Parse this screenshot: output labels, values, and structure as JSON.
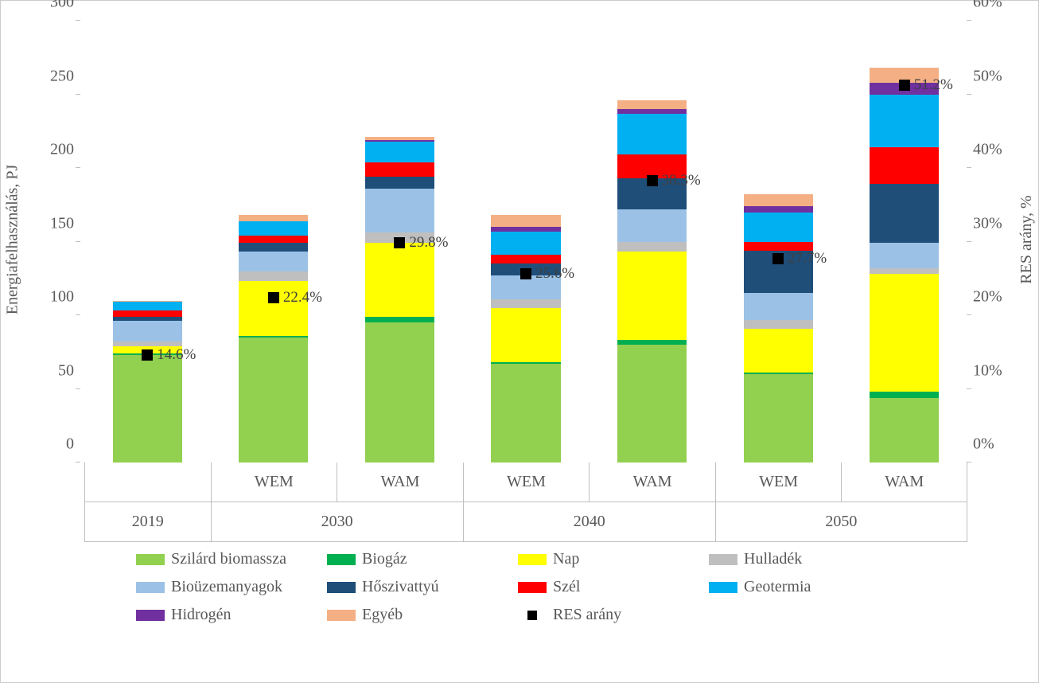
{
  "chart": {
    "type": "stacked-bar-dual-axis",
    "background_color": "#ffffff",
    "border_color": "#cccccc",
    "font_family": "Times New Roman",
    "axis_text_color": "#595959",
    "axis_fontsize": 20,
    "y_left": {
      "label": "Energiafelhasználás, PJ",
      "min": 0,
      "max": 300,
      "step": 50,
      "ticks": [
        0,
        50,
        100,
        150,
        200,
        250,
        300
      ]
    },
    "y_right": {
      "label": "RES arány, %",
      "min": 0,
      "max": 60,
      "step": 10,
      "ticks": [
        "0%",
        "10%",
        "20%",
        "30%",
        "40%",
        "50%",
        "60%"
      ]
    },
    "series": [
      {
        "key": "szilard_biomassza",
        "label": "Szilárd biomassza",
        "color": "#92d050"
      },
      {
        "key": "biogaz",
        "label": "Biogáz",
        "color": "#00b050"
      },
      {
        "key": "nap",
        "label": "Nap",
        "color": "#ffff00"
      },
      {
        "key": "hulladek",
        "label": "Hulladék",
        "color": "#bfbfbf"
      },
      {
        "key": "biouzemanyagok",
        "label": "Bioüzemanyagok",
        "color": "#9bc2e6"
      },
      {
        "key": "hoszivattyu",
        "label": "Hőszivattyú",
        "color": "#1f4e79"
      },
      {
        "key": "szel",
        "label": "Szél",
        "color": "#ff0000"
      },
      {
        "key": "geotermia",
        "label": "Geotermia",
        "color": "#00b0f0"
      },
      {
        "key": "hidrogen",
        "label": "Hidrogén",
        "color": "#7030a0"
      },
      {
        "key": "egyeb",
        "label": "Egyéb",
        "color": "#f4b084"
      }
    ],
    "marker_series": {
      "key": "res_arany",
      "label": "RES arány",
      "color": "#000000"
    },
    "categories": [
      {
        "sub": "",
        "group": "2019"
      },
      {
        "sub": "WEM",
        "group": "2030"
      },
      {
        "sub": "WAM",
        "group": "2030"
      },
      {
        "sub": "WEM",
        "group": "2040"
      },
      {
        "sub": "WAM",
        "group": "2040"
      },
      {
        "sub": "WEM",
        "group": "2050"
      },
      {
        "sub": "WAM",
        "group": "2050"
      }
    ],
    "group_labels": [
      "2019",
      "2030",
      "2040",
      "2050"
    ],
    "data": [
      {
        "szilard_biomassza": 73,
        "biogaz": 1,
        "nap": 5,
        "hulladek": 3,
        "biouzemanyagok": 14,
        "hoszivattyu": 3,
        "szel": 4,
        "geotermia": 6,
        "hidrogen": 0,
        "egyeb": 1,
        "res_arany": 14.6,
        "res_label": "14.6%"
      },
      {
        "szilard_biomassza": 85,
        "biogaz": 1,
        "nap": 37,
        "hulladek": 7,
        "biouzemanyagok": 13,
        "hoszivattyu": 6,
        "szel": 5,
        "geotermia": 10,
        "hidrogen": 0,
        "egyeb": 4,
        "res_arany": 22.4,
        "res_label": "22.4%"
      },
      {
        "szilard_biomassza": 95,
        "biogaz": 4,
        "nap": 50,
        "hulladek": 7,
        "biouzemanyagok": 30,
        "hoszivattyu": 8,
        "szel": 10,
        "geotermia": 14,
        "hidrogen": 1,
        "egyeb": 2,
        "res_arany": 29.8,
        "res_label": "29.8%"
      },
      {
        "szilard_biomassza": 67,
        "biogaz": 1,
        "nap": 37,
        "hulladek": 6,
        "biouzemanyagok": 16,
        "hoszivattyu": 8,
        "szel": 6,
        "geotermia": 16,
        "hidrogen": 3,
        "egyeb": 8,
        "res_arany": 25.6,
        "res_label": "25.6%"
      },
      {
        "szilard_biomassza": 80,
        "biogaz": 3,
        "nap": 60,
        "hulladek": 7,
        "biouzemanyagok": 22,
        "hoszivattyu": 21,
        "szel": 16,
        "geotermia": 28,
        "hidrogen": 3,
        "egyeb": 6,
        "res_arany": 38.3,
        "res_label": "38.3%"
      },
      {
        "szilard_biomassza": 60,
        "biogaz": 1,
        "nap": 30,
        "hulladek": 6,
        "biouzemanyagok": 18,
        "hoszivattyu": 29,
        "szel": 6,
        "geotermia": 20,
        "hidrogen": 4,
        "egyeb": 8,
        "res_arany": 27.7,
        "res_label": "27.7%"
      },
      {
        "szilard_biomassza": 44,
        "biogaz": 4,
        "nap": 80,
        "hulladek": 4,
        "biouzemanyagok": 17,
        "hoszivattyu": 40,
        "szel": 25,
        "geotermia": 36,
        "hidrogen": 8,
        "egyeb": 10,
        "res_arany": 51.2,
        "res_label": "51.2%"
      }
    ],
    "bar_width_ratio": 0.55,
    "group_spans": [
      1,
      2,
      2,
      2
    ]
  }
}
